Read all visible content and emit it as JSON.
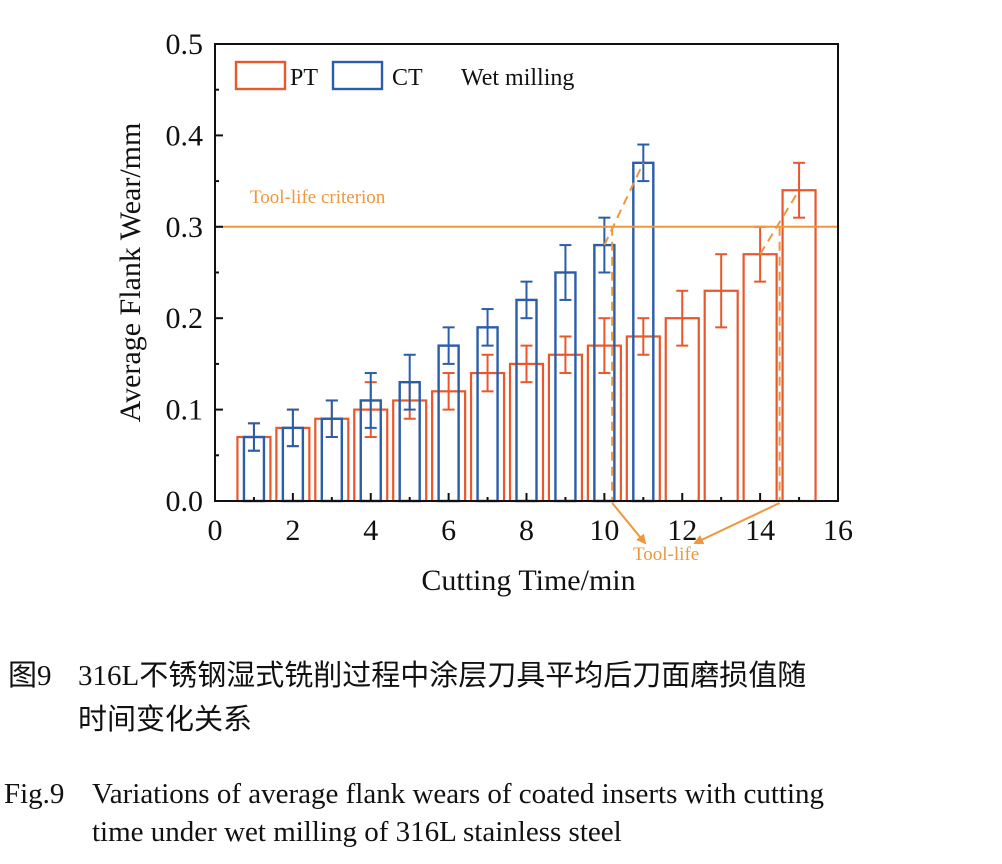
{
  "chart_data": {
    "type": "bar",
    "xlabel": "Cutting Time/min",
    "ylabel": "Average Flank Wear/mm",
    "xlim": [
      0,
      16
    ],
    "ylim": [
      0,
      0.5
    ],
    "xticks": [
      "0",
      "2",
      "4",
      "6",
      "8",
      "10",
      "12",
      "14",
      "16"
    ],
    "yticks": [
      "0.0",
      "0.1",
      "0.2",
      "0.3",
      "0.4",
      "0.5"
    ],
    "legend_position": "top-left",
    "annotation": "Wet milling",
    "series": [
      {
        "name": "PT",
        "color": "#E8582C",
        "x": [
          1,
          2,
          3,
          4,
          5,
          6,
          7,
          8,
          9,
          10,
          11,
          12,
          13,
          14,
          15
        ],
        "values": [
          0.07,
          0.08,
          0.09,
          0.1,
          0.11,
          0.12,
          0.14,
          0.15,
          0.16,
          0.17,
          0.18,
          0.2,
          0.23,
          0.27,
          0.34
        ],
        "errors": [
          0.015,
          0.02,
          0.02,
          0.03,
          0.02,
          0.02,
          0.02,
          0.02,
          0.02,
          0.03,
          0.02,
          0.03,
          0.04,
          0.03,
          0.03
        ]
      },
      {
        "name": "CT",
        "color": "#2A5DAA",
        "x": [
          1,
          2,
          3,
          4,
          5,
          6,
          7,
          8,
          9,
          10,
          11
        ],
        "values": [
          0.07,
          0.08,
          0.09,
          0.11,
          0.13,
          0.17,
          0.19,
          0.22,
          0.25,
          0.28,
          0.37
        ],
        "errors": [
          0.015,
          0.02,
          0.02,
          0.03,
          0.03,
          0.02,
          0.02,
          0.02,
          0.03,
          0.03,
          0.02
        ]
      }
    ],
    "reference_line": {
      "y": 0.3,
      "label": "Tool-life criterion",
      "color": "#F0963C"
    },
    "tool_life": {
      "label": "Tool-life",
      "values": [
        10.2,
        14.5
      ]
    }
  },
  "caption": {
    "cn_label": "图9",
    "cn_line1": "316L不锈钢湿式铣削过程中涂层刀具平均后刀面磨损值随",
    "cn_line2": "时间变化关系",
    "en_label": "Fig.9",
    "en_line1": "Variations of average flank wears of coated inserts with cutting",
    "en_line2": "time under wet milling of 316L stainless steel"
  }
}
